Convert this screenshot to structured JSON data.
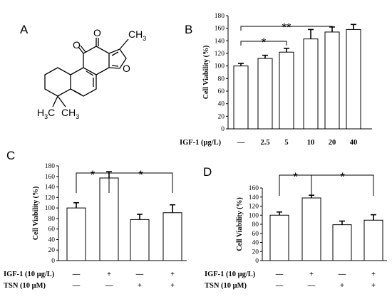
{
  "panels": {
    "A": "A",
    "B": "B",
    "C": "C",
    "D": "D"
  },
  "structure": {
    "atoms": {
      "o_top1": "O",
      "o_top2": "O",
      "o_furan": "O",
      "ch3_top": "CH",
      "ch3_top_sub": "3",
      "h3c_left": "H",
      "h3c_left_sub": "3",
      "h3c_left_c": "C",
      "ch3_bottom": "CH",
      "ch3_bottom_sub": "3"
    }
  },
  "chart_data": [
    {
      "id": "B",
      "type": "bar",
      "ylabel": "Cell Viability (%)",
      "ylim": [
        0,
        180
      ],
      "yticks": [
        0,
        20,
        40,
        60,
        80,
        100,
        120,
        140,
        160,
        180
      ],
      "row_label": "IGF-1 (μg/L)",
      "categories": [
        "—",
        "2.5",
        "5",
        "10",
        "20",
        "40"
      ],
      "values": [
        100,
        112,
        122,
        143,
        154,
        158
      ],
      "errors": [
        4,
        5,
        6,
        15,
        8,
        8
      ],
      "annotations": [
        {
          "label": "*",
          "from": 0,
          "to": 2
        },
        {
          "label": "**",
          "from": 0,
          "to": 4
        }
      ]
    },
    {
      "id": "C",
      "type": "bar",
      "ylabel": "Cell Viability (%)",
      "ylim": [
        0,
        180
      ],
      "yticks": [
        0,
        20,
        40,
        60,
        80,
        100,
        120,
        140,
        160,
        180
      ],
      "rows": [
        {
          "label": "IGF-1 (10 μg/L)",
          "marks": [
            "—",
            "+",
            "—",
            "+"
          ]
        },
        {
          "label": "TSN (10 μM)",
          "marks": [
            "—",
            "—",
            "+",
            "+"
          ]
        }
      ],
      "values": [
        100,
        157,
        78,
        91
      ],
      "errors": [
        10,
        12,
        10,
        15
      ],
      "annotations": [
        {
          "label": "*",
          "from": 0,
          "to": 1
        },
        {
          "label": "*",
          "from": 1,
          "to": 3
        }
      ]
    },
    {
      "id": "D",
      "type": "bar",
      "ylabel": "Cell Viability (%)",
      "ylim": [
        0,
        160
      ],
      "yticks": [
        0,
        20,
        40,
        60,
        80,
        100,
        120,
        140,
        160
      ],
      "rows": [
        {
          "label": "IGF-1 (10 μg/L)",
          "marks": [
            "—",
            "+",
            "—",
            "+"
          ]
        },
        {
          "label": "TSN (10 μM)",
          "marks": [
            "—",
            "—",
            "+",
            "+"
          ]
        }
      ],
      "values": [
        100,
        138,
        79,
        89
      ],
      "errors": [
        7,
        6,
        8,
        12
      ],
      "annotations": [
        {
          "label": "*",
          "from": 0,
          "to": 1
        },
        {
          "label": "*",
          "from": 1,
          "to": 3
        }
      ]
    }
  ]
}
